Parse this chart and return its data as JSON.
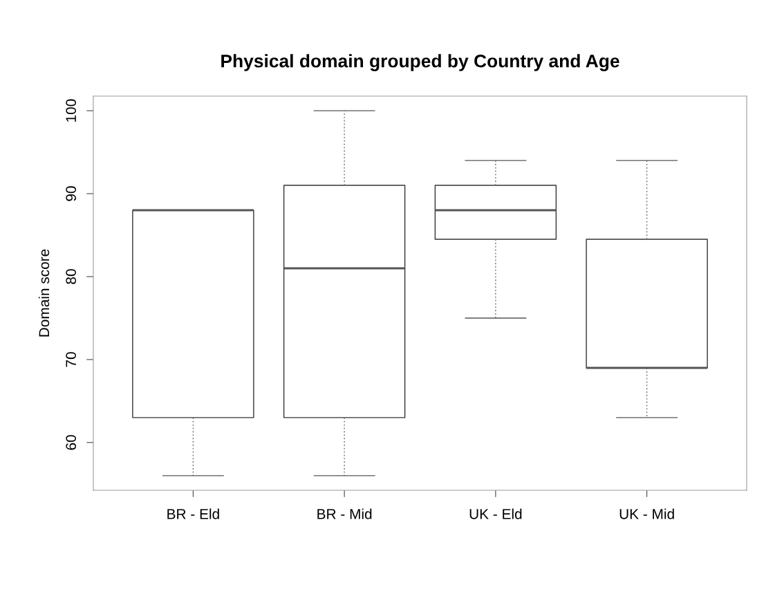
{
  "chart_data": {
    "type": "box",
    "title": "Physical domain grouped by Country and Age",
    "ylabel": "Domain score",
    "categories": [
      "BR - Eld",
      "BR - Mid",
      "UK - Eld",
      "UK - Mid"
    ],
    "boxes": [
      {
        "low": 56,
        "q1": 63,
        "median": 88,
        "q3": 88,
        "high": 88
      },
      {
        "low": 56,
        "q1": 63,
        "median": 81,
        "q3": 91,
        "high": 100
      },
      {
        "low": 75,
        "q1": 84.5,
        "median": 88,
        "q3": 91,
        "high": 94
      },
      {
        "low": 63,
        "q1": 69,
        "median": 69,
        "q3": 84.5,
        "high": 94
      }
    ],
    "ylim": [
      54.24,
      101.76
    ],
    "yticks": [
      60,
      70,
      80,
      90,
      100
    ],
    "grid": false,
    "legend": false
  }
}
